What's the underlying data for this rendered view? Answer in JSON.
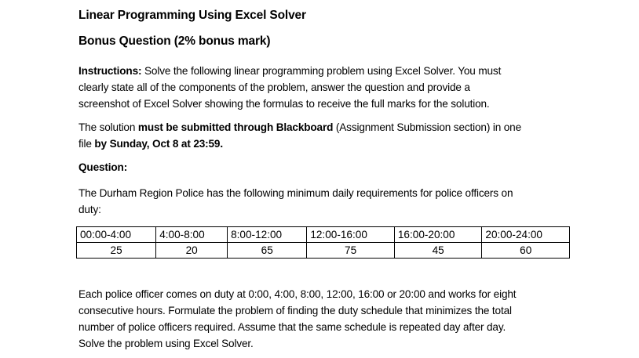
{
  "title": "Linear Programming Using Excel Solver",
  "subtitle": "Bonus Question (2% bonus mark)",
  "instructions": {
    "label": "Instructions:",
    "lines": [
      " Solve the following linear programming problem using Excel Solver. You must",
      "clearly state all of the components of the problem, answer the question and provide a",
      "screenshot of Excel Solver showing the formulas to receive the full marks for the solution."
    ]
  },
  "submission": {
    "t1": "The solution ",
    "b1": "must be submitted through Blackboard",
    "t2": " (Assignment Submission section) in one",
    "t3": "file ",
    "b2": "by Sunday, Oct 8 at 23:59."
  },
  "question_label": "Question:",
  "intro_lines": [
    "The Durham Region Police has the following minimum daily requirements for police officers on",
    "duty:"
  ],
  "table": {
    "headers": [
      "00:00-4:00",
      "4:00-8:00",
      "8:00-12:00",
      "12:00-16:00",
      "16:00-20:00",
      "20:00-24:00"
    ],
    "values": [
      "25",
      "20",
      "65",
      "75",
      "45",
      "60"
    ]
  },
  "body_lines": [
    "Each police officer comes on duty at 0:00, 4:00, 8:00, 12:00, 16:00 or 20:00 and works for eight",
    "consecutive hours. Formulate the problem of finding the duty schedule that minimizes the total",
    "number of police officers required. Assume that the same schedule is repeated day after day.",
    "Solve the problem using Excel Solver."
  ]
}
